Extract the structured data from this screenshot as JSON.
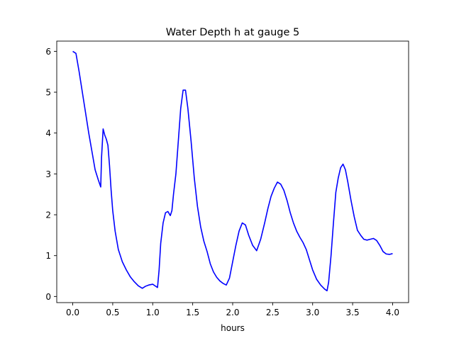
{
  "chart_data": {
    "type": "line",
    "title": "Water Depth h at gauge 5",
    "xlabel": "hours",
    "ylabel": "",
    "xlim": [
      -0.2,
      4.2
    ],
    "ylim": [
      -0.15,
      6.25
    ],
    "xticks": [
      0.0,
      0.5,
      1.0,
      1.5,
      2.0,
      2.5,
      3.0,
      3.5,
      4.0
    ],
    "xtick_labels": [
      "0.0",
      "0.5",
      "1.0",
      "1.5",
      "2.0",
      "2.5",
      "3.0",
      "3.5",
      "4.0"
    ],
    "yticks": [
      0,
      1,
      2,
      3,
      4,
      5,
      6
    ],
    "ytick_labels": [
      "0",
      "1",
      "2",
      "3",
      "4",
      "5",
      "6"
    ],
    "grid": false,
    "legend": "none",
    "series": [
      {
        "color": "#0000ff",
        "x": [
          0.0,
          0.04,
          0.08,
          0.12,
          0.16,
          0.2,
          0.24,
          0.28,
          0.32,
          0.35,
          0.36,
          0.38,
          0.4,
          0.42,
          0.44,
          0.46,
          0.48,
          0.5,
          0.53,
          0.57,
          0.62,
          0.67,
          0.72,
          0.77,
          0.82,
          0.87,
          0.91,
          0.95,
          1.0,
          1.03,
          1.06,
          1.08,
          1.1,
          1.13,
          1.16,
          1.19,
          1.22,
          1.24,
          1.26,
          1.29,
          1.32,
          1.35,
          1.38,
          1.41,
          1.44,
          1.48,
          1.52,
          1.56,
          1.6,
          1.64,
          1.68,
          1.72,
          1.76,
          1.8,
          1.84,
          1.88,
          1.92,
          1.96,
          2.0,
          2.04,
          2.08,
          2.12,
          2.16,
          2.2,
          2.25,
          2.3,
          2.35,
          2.4,
          2.44,
          2.48,
          2.52,
          2.56,
          2.6,
          2.64,
          2.68,
          2.72,
          2.76,
          2.8,
          2.84,
          2.88,
          2.92,
          2.96,
          3.0,
          3.05,
          3.1,
          3.15,
          3.18,
          3.2,
          3.23,
          3.26,
          3.29,
          3.32,
          3.35,
          3.38,
          3.41,
          3.44,
          3.48,
          3.52,
          3.56,
          3.6,
          3.64,
          3.68,
          3.72,
          3.76,
          3.8,
          3.84,
          3.88,
          3.92,
          3.96,
          4.0
        ],
        "y": [
          6.0,
          5.95,
          5.5,
          5.0,
          4.5,
          4.0,
          3.55,
          3.1,
          2.85,
          2.68,
          3.4,
          4.1,
          3.95,
          3.85,
          3.7,
          3.2,
          2.6,
          2.1,
          1.6,
          1.15,
          0.85,
          0.65,
          0.48,
          0.36,
          0.26,
          0.2,
          0.25,
          0.28,
          0.3,
          0.26,
          0.22,
          0.65,
          1.3,
          1.8,
          2.05,
          2.08,
          1.98,
          2.1,
          2.5,
          3.0,
          3.8,
          4.6,
          5.05,
          5.05,
          4.6,
          3.8,
          2.9,
          2.2,
          1.7,
          1.35,
          1.1,
          0.8,
          0.6,
          0.47,
          0.38,
          0.32,
          0.28,
          0.45,
          0.85,
          1.25,
          1.6,
          1.8,
          1.75,
          1.5,
          1.25,
          1.12,
          1.4,
          1.8,
          2.15,
          2.45,
          2.65,
          2.8,
          2.75,
          2.6,
          2.35,
          2.05,
          1.8,
          1.6,
          1.45,
          1.32,
          1.15,
          0.9,
          0.65,
          0.42,
          0.28,
          0.18,
          0.14,
          0.35,
          1.0,
          1.8,
          2.55,
          2.9,
          3.15,
          3.24,
          3.1,
          2.8,
          2.35,
          1.95,
          1.62,
          1.5,
          1.4,
          1.38,
          1.4,
          1.42,
          1.37,
          1.25,
          1.1,
          1.04,
          1.03,
          1.05
        ]
      }
    ]
  }
}
